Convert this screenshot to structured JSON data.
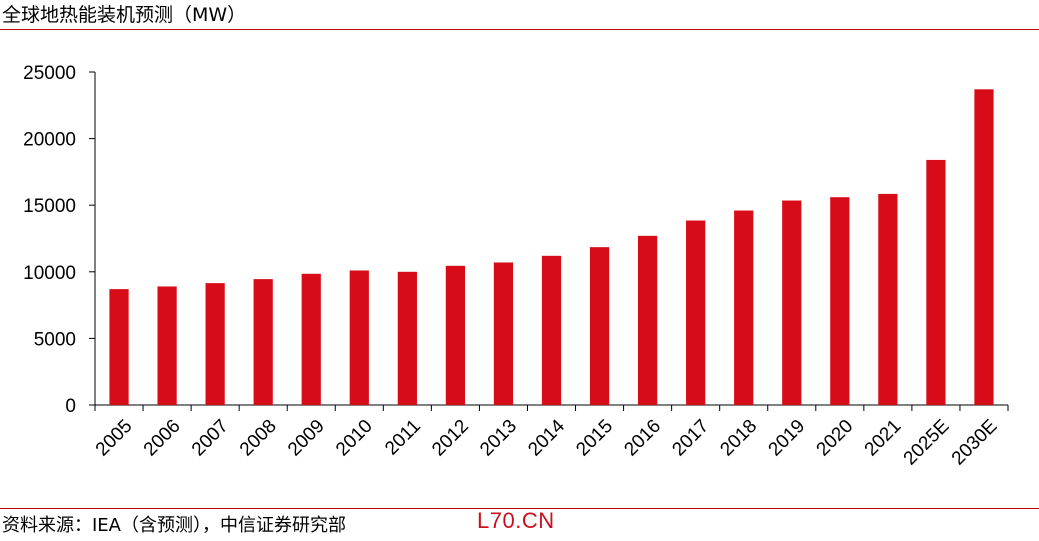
{
  "header": {
    "title": "全球地热能装机预测（MW）"
  },
  "footer": {
    "source": "资料来源：IEA（含预测），中信证券研究部",
    "watermark": "L70.CN"
  },
  "colors": {
    "bar": "#d70c18",
    "rule": "#c0001a",
    "axis": "#000000"
  },
  "chart_data": {
    "type": "bar",
    "title": "全球地热能装机预测（MW）",
    "xlabel": "",
    "ylabel": "",
    "categories": [
      "2005",
      "2006",
      "2007",
      "2008",
      "2009",
      "2010",
      "2011",
      "2012",
      "2013",
      "2014",
      "2015",
      "2016",
      "2017",
      "2018",
      "2019",
      "2020",
      "2021",
      "2025E",
      "2030E"
    ],
    "values": [
      8700,
      8900,
      9150,
      9450,
      9850,
      10100,
      10000,
      10450,
      10700,
      11200,
      11850,
      12700,
      13850,
      14600,
      15350,
      15600,
      15850,
      18400,
      23700
    ],
    "ylim": [
      0,
      25000
    ],
    "yticks": [
      0,
      5000,
      10000,
      15000,
      20000,
      25000
    ],
    "grid": false,
    "legend": "none"
  }
}
